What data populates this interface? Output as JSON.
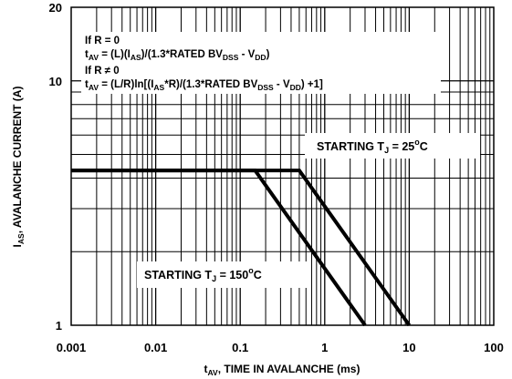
{
  "chart_data": {
    "type": "line",
    "xscale": "log",
    "yscale": "log",
    "xlim": [
      0.001,
      100
    ],
    "ylim": [
      1,
      20
    ],
    "grid": true,
    "x_ticks": [
      "0.001",
      "0.01",
      "0.1",
      "1",
      "10",
      "100"
    ],
    "y_ticks": [
      "1",
      "10",
      "20"
    ],
    "xlabel": {
      "main": "t",
      "sub": "AV",
      "rest": ", TIME IN AVALANCHE (ms)"
    },
    "ylabel": {
      "main": "I",
      "sub": "AS",
      "rest": ", AVALANCHE CURRENT (A)"
    },
    "annotations": {
      "line1": "If R = 0",
      "line2": {
        "a": "t",
        "a_sub": "AV",
        "b": " = (L)(I",
        "b_sub": "AS",
        "c": ")/(1.3*RATED BV",
        "c_sub": "DSS",
        "d": " - V",
        "d_sub": "DD",
        "e": ")"
      },
      "line3": "If R ≠ 0",
      "line4": {
        "a": "t",
        "a_sub": "AV",
        "b": " = (L/R)ln[(I",
        "b_sub": "AS",
        "c": "*R)/(1.3*RATED BV",
        "c_sub": "DSS",
        "d": " - V",
        "d_sub": "DD",
        "e": ") +1]"
      }
    },
    "series": [
      {
        "label": {
          "a": "STARTING T",
          "sub": "J",
          "b": " = 25",
          "sup": "o",
          "c": "C"
        },
        "x": [
          0.001,
          0.5,
          10
        ],
        "y": [
          4.3,
          4.3,
          1
        ]
      },
      {
        "label": {
          "a": "STARTING T",
          "sub": "J",
          "b": " = 150",
          "sup": "o",
          "c": "C"
        },
        "x": [
          0.001,
          0.15,
          3
        ],
        "y": [
          4.3,
          4.3,
          1
        ]
      }
    ]
  }
}
